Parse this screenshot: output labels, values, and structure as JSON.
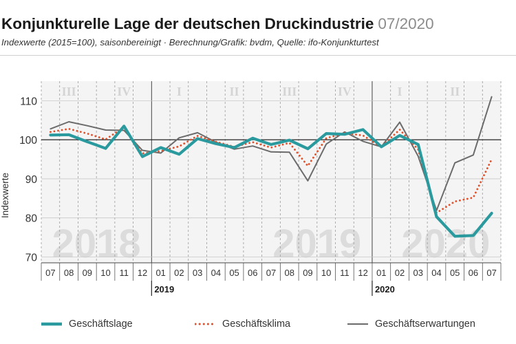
{
  "header": {
    "title": "Konjunkturelle Lage der deutschen Druckindustrie",
    "title_date": "07/2020",
    "subtitle": "Indexwerte (2015=100), saisonbereinigt · Berechnung/Grafik: bvdm, Quelle: ifo-Konjunkturtest"
  },
  "colors": {
    "geschaeftslage": "#2a9a9e",
    "geschaeftsklima": "#e0502a",
    "geschaeftserwartungen": "#6b6b6b"
  },
  "chart_data": {
    "type": "line",
    "ylabel": "Indexwerte",
    "ylim": [
      68.5,
      115
    ],
    "yticks": [
      70,
      80,
      90,
      100,
      110
    ],
    "reference_line": 100,
    "categories": [
      "07",
      "08",
      "09",
      "10",
      "11",
      "12",
      "01",
      "02",
      "03",
      "04",
      "05",
      "06",
      "07",
      "08",
      "09",
      "10",
      "11",
      "12",
      "01",
      "02",
      "03",
      "04",
      "05",
      "06",
      "07"
    ],
    "year_labels": [
      {
        "label": "2019",
        "index": 6
      },
      {
        "label": "2020",
        "index": 18
      }
    ],
    "watermark_years": [
      {
        "label": "2018",
        "center_index": 2.5
      },
      {
        "label": "2019",
        "center_index": 14.5
      },
      {
        "label": "2020",
        "center_index": 21.5
      }
    ],
    "quarter_labels": [
      {
        "label": "III",
        "center_index": 1
      },
      {
        "label": "IV",
        "center_index": 4
      },
      {
        "label": "I",
        "center_index": 7
      },
      {
        "label": "II",
        "center_index": 10
      },
      {
        "label": "III",
        "center_index": 13
      },
      {
        "label": "IV",
        "center_index": 16
      },
      {
        "label": "I",
        "center_index": 19
      },
      {
        "label": "II",
        "center_index": 22
      }
    ],
    "series": [
      {
        "name": "Geschäftslage",
        "style": "solid-thick",
        "values": [
          101.2,
          101.3,
          99.5,
          97.8,
          103.5,
          95.7,
          98.0,
          96.3,
          100.3,
          99.0,
          98.0,
          100.4,
          98.8,
          99.9,
          97.7,
          101.6,
          101.4,
          102.6,
          98.2,
          101.1,
          98.8,
          80.3,
          75.3,
          75.5,
          81.2
        ]
      },
      {
        "name": "Geschäftsklima",
        "style": "dotted",
        "values": [
          102.0,
          102.8,
          101.6,
          100.1,
          103.2,
          96.5,
          97.1,
          98.3,
          101.0,
          99.5,
          98.2,
          99.4,
          98.0,
          99.2,
          93.3,
          100.4,
          101.7,
          101.1,
          98.2,
          102.6,
          97.5,
          81.3,
          84.2,
          85.2,
          95.0
        ]
      },
      {
        "name": "Geschäftserwartungen",
        "style": "solid-thin",
        "values": [
          102.8,
          104.6,
          103.6,
          102.5,
          102.4,
          97.3,
          96.6,
          100.5,
          101.8,
          99.4,
          97.6,
          98.4,
          96.9,
          96.8,
          89.5,
          98.9,
          102.0,
          99.6,
          98.2,
          104.5,
          95.8,
          81.9,
          94.1,
          96.1,
          111.0
        ]
      }
    ]
  }
}
